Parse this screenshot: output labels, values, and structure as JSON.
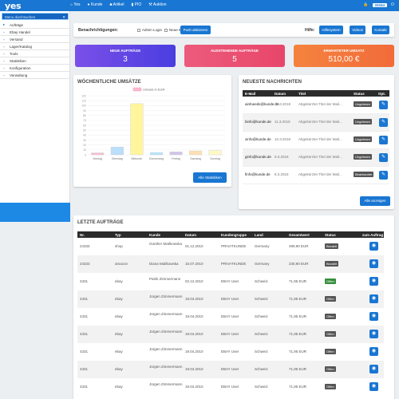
{
  "app": {
    "logo": "yes"
  },
  "topnav": {
    "items": [
      {
        "icon": "home-icon",
        "label": "Yes"
      },
      {
        "icon": "user-icon",
        "label": "Kunde"
      },
      {
        "icon": "box-icon",
        "label": "Artikel"
      },
      {
        "icon": "chart-icon",
        "label": "PIO"
      },
      {
        "icon": "gavel-icon",
        "label": "Auktion"
      }
    ],
    "counter": "33344"
  },
  "sidebar": {
    "search_placeholder": "Menu durchsuchen",
    "items": [
      {
        "label": "Aufträge"
      },
      {
        "label": "Ebay Handel"
      },
      {
        "label": "Versand"
      },
      {
        "label": "Lager/Katalog"
      },
      {
        "label": "Tools"
      },
      {
        "label": "Statistiken"
      },
      {
        "label": "Konfiguration"
      },
      {
        "label": "Verwaltung"
      }
    ]
  },
  "notifications": {
    "label": "Benachrichtigungen:",
    "opt1": "Admin Login",
    "opt2": "Neue Emails",
    "push_btn": "Push aktivieren",
    "hilfe_label": "Hilfe:",
    "btn_hilfe": "Hilfesystem",
    "btn_videos": "Videos",
    "btn_kontakt": "Kontakt"
  },
  "kpis": [
    {
      "title": "NEUE AUFTRÄGE",
      "value": "3",
      "color": "#6a3de8"
    },
    {
      "title": "AUSSTEHENDE AUFTRÄGE",
      "value": "5",
      "color": "#e64a6a"
    },
    {
      "title": "ERWARTETER UMSATZ",
      "value": "510,00 €",
      "color": "#f57c3c"
    }
  ],
  "weekly": {
    "title": "WÖCHENTLICHE UMSÄTZE",
    "button": "Alle Statistiken",
    "chart_data": {
      "type": "bar",
      "categories": [
        "Montag",
        "Dienstag",
        "Mittwoch",
        "Donnerstag",
        "Freitag",
        "Samstag",
        "Sonntag"
      ],
      "series": [
        {
          "name": "Umsatz in EUR",
          "values": [
            10,
            40,
            260,
            12,
            15,
            20,
            22
          ]
        }
      ],
      "ylim": [
        0,
        300
      ],
      "yticks": [
        0,
        10,
        20,
        30,
        40,
        50,
        60,
        70,
        80,
        90,
        100,
        110,
        120
      ],
      "colors": [
        "#f8bbd0",
        "#bbdefb",
        "#fff59d",
        "#b3e5fc",
        "#d1c4e9",
        "#ffe0b2",
        "#fff9c4"
      ],
      "grid": true,
      "legend": "top"
    }
  },
  "messages": {
    "title": "NEUESTE NACHRICHTEN",
    "cols": [
      "E-Mail",
      "Datum",
      "Titel",
      "Status",
      "Opt."
    ],
    "rows": [
      {
        "email": "ainfoeeds@kunde.de",
        "date": "12.3.2018",
        "title": "Abgekürzter Titel der Mail...",
        "status": "Ungelesen"
      },
      {
        "email": "binfo@kunde.de",
        "date": "11.3.2018",
        "title": "Abgekürzter Titel der Mail...",
        "status": "Ungelesen"
      },
      {
        "email": "xinfo@kunde.de",
        "date": "10.3.2018",
        "title": "Abgekürzter Titel der Mail...",
        "status": "Ungelesen"
      },
      {
        "email": "ginfo@kunde.de",
        "date": "9.3.2018",
        "title": "Abgekürzter Titel der Mail...",
        "status": "Ungelesen"
      },
      {
        "email": "finfo@kunde.de",
        "date": "8.3.2018",
        "title": "Abgekürzter Titel der Mail...",
        "status": "Beantwortet"
      }
    ],
    "button": "Alle anzeigen"
  },
  "orders": {
    "title": "LETZTE AUFTRÄGE",
    "cols": [
      "Nr.",
      "Typ",
      "Kunde",
      "Datum",
      "Kundengruppe",
      "Land",
      "Gesamtwert",
      "Status",
      "zum Auftrag"
    ],
    "rows": [
      {
        "nr": "24333",
        "typ": "shop",
        "kunde": "Günther Matlkowska",
        "datum": "01.12.2010",
        "gruppe": "PRIVATKUNDE",
        "land": "Germany",
        "wert": "499,90 EUR",
        "status": "Bezahlt"
      },
      {
        "nr": "24333",
        "typ": "amazon",
        "kunde": "Diana Matlkowska",
        "datum": "15.07.2010",
        "gruppe": "PRIVATKUNDE",
        "land": "Germany",
        "wert": "230,90 EUR",
        "status": "Bezahlt"
      },
      {
        "nr": "4331",
        "typ": "ebay",
        "kunde": "Patrik Zimmermann",
        "datum": "02.12.2010",
        "gruppe": "EBAY User",
        "land": "Schweiz",
        "wert": "71,95 EUR",
        "status": "Offen"
      },
      {
        "nr": "4331",
        "typ": "ebay",
        "kunde": "Jürgen Zimmermann",
        "datum": "19.04.2010",
        "gruppe": "EBAY User",
        "land": "Schweiz",
        "wert": "71,95 EUR",
        "status": "Offen"
      },
      {
        "nr": "4331",
        "typ": "ebay",
        "kunde": "Jürgen Zimmermann",
        "datum": "19.04.2010",
        "gruppe": "EBAY User",
        "land": "Schweiz",
        "wert": "71,95 EUR",
        "status": "Offen"
      },
      {
        "nr": "4331",
        "typ": "ebay",
        "kunde": "Jürgen Zimmermann",
        "datum": "19.04.2010",
        "gruppe": "EBAY User",
        "land": "Schweiz",
        "wert": "71,95 EUR",
        "status": "Offen"
      },
      {
        "nr": "4331",
        "typ": "ebay",
        "kunde": "Jürgen Zimmermann",
        "datum": "19.04.2010",
        "gruppe": "EBAY User",
        "land": "Schweiz",
        "wert": "71,95 EUR",
        "status": "Offen"
      },
      {
        "nr": "4331",
        "typ": "ebay",
        "kunde": "Jürgen Zimmermann",
        "datum": "19.04.2010",
        "gruppe": "EBAY User",
        "land": "Schweiz",
        "wert": "71,95 EUR",
        "status": "Offen"
      },
      {
        "nr": "4331",
        "typ": "ebay",
        "kunde": "Jürgen Zimmermann",
        "datum": "19.04.2010",
        "gruppe": "EBAY User",
        "land": "Schweiz",
        "wert": "71,95 EUR",
        "status": "Offen"
      }
    ]
  }
}
